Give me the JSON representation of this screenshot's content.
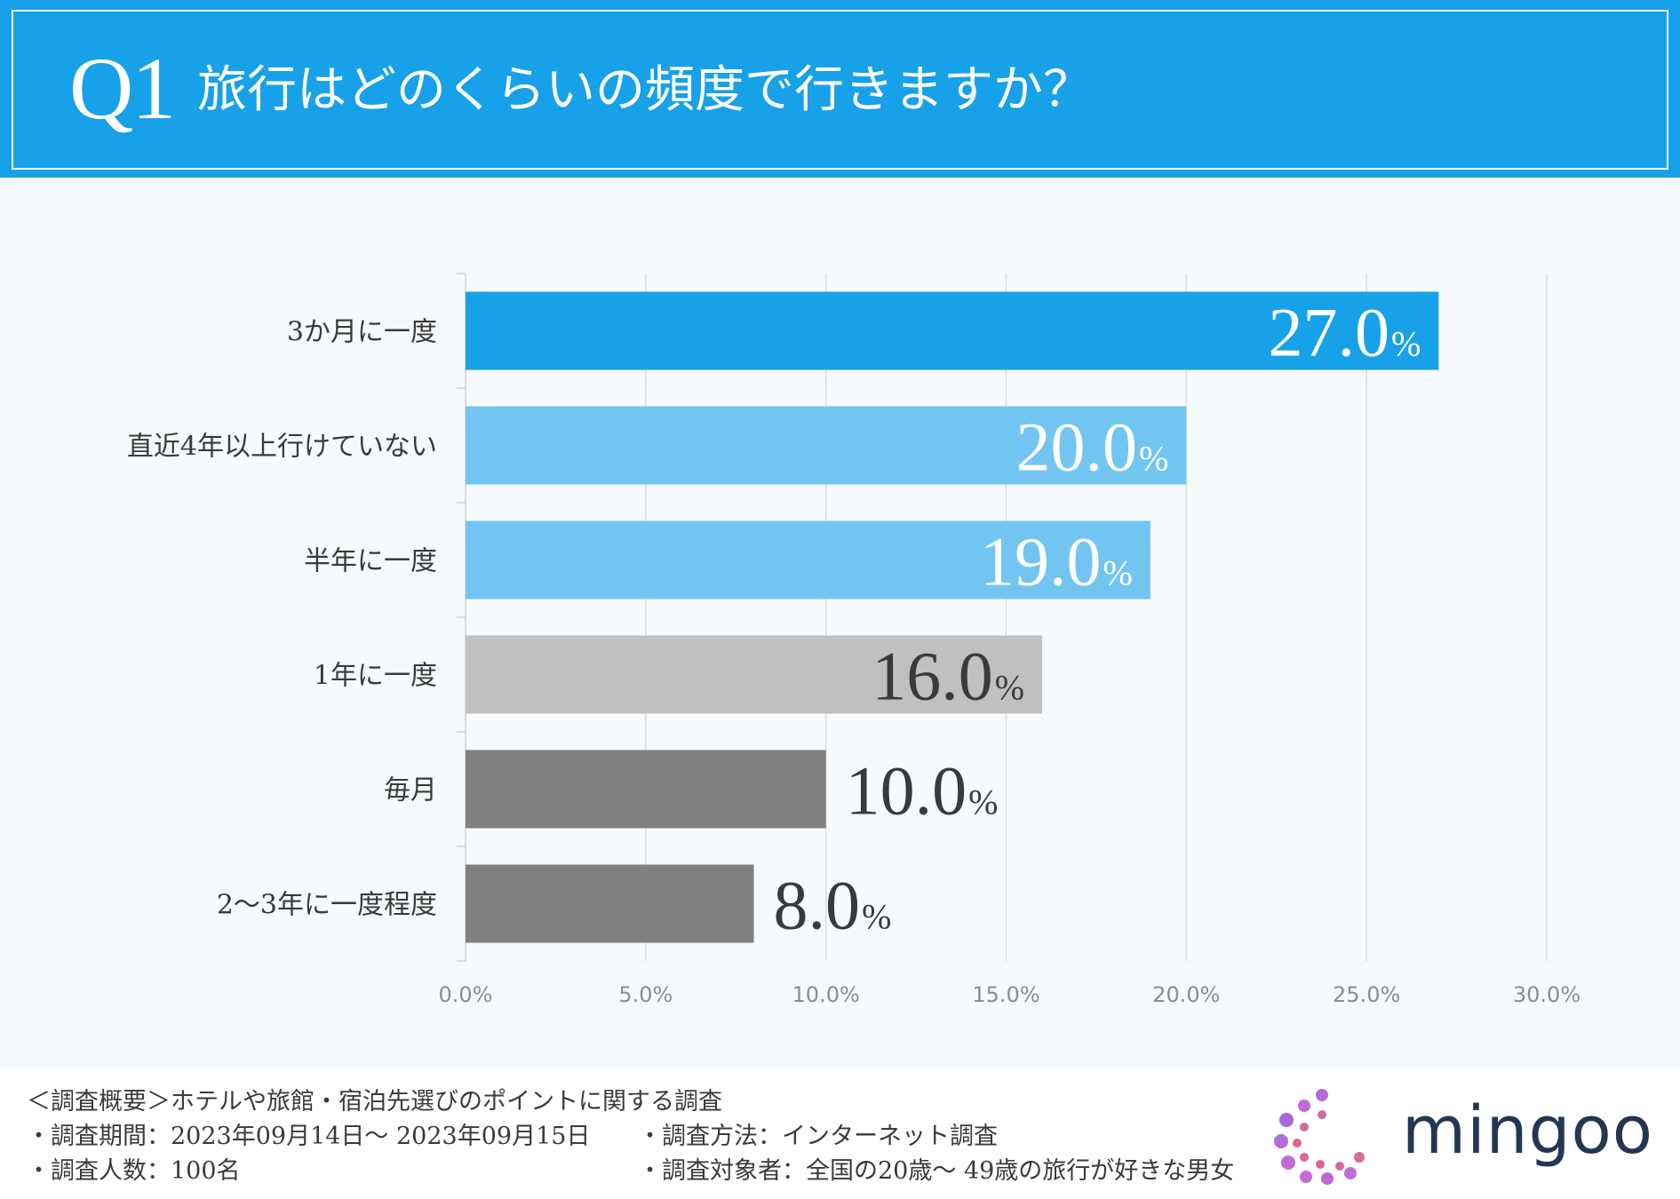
{
  "header": {
    "q_label": "Q1",
    "question": "旅行はどのくらいの頻度で行きますか？"
  },
  "colors": {
    "header_bg": "#17a1e8",
    "dark_blue": "#17a1e8",
    "light_blue": "#72c5f0",
    "light_gray": "#c0c0c0",
    "dark_gray": "#7f7f7f"
  },
  "chart_data": {
    "type": "bar",
    "orientation": "horizontal",
    "categories": [
      "3か月に一度",
      "直近4年以上行けていない",
      "半年に一度",
      "1年に一度",
      "毎月",
      "2〜3年に一度程度"
    ],
    "values": [
      27.0,
      20.0,
      19.0,
      16.0,
      10.0,
      8.0
    ],
    "value_labels": [
      "27.0",
      "20.0",
      "19.0",
      "16.0",
      "10.0",
      "8.0"
    ],
    "value_unit": "%",
    "bar_colors": [
      "#17a1e8",
      "#72c5f0",
      "#72c5f0",
      "#c0c0c0",
      "#7f7f7f",
      "#7f7f7f"
    ],
    "label_inside": [
      true,
      true,
      true,
      true,
      false,
      false
    ],
    "xlim": [
      0,
      30
    ],
    "xticks": [
      0,
      5,
      10,
      15,
      20,
      25,
      30
    ],
    "xtick_labels": [
      "0.0%",
      "5.0%",
      "10.0%",
      "15.0%",
      "20.0%",
      "25.0%",
      "30.0%"
    ],
    "grid": true
  },
  "footer": {
    "summary": "＜調査概要＞ホテルや旅館・宿泊先選びのポイントに関する調査",
    "period": "・調査期間：2023年09月14日〜 2023年09月15日",
    "respondents": "・調査人数：100名",
    "method": "・調査方法：インターネット調査",
    "target": "・調査対象者：全国の20歳〜 49歳の旅行が好きな男女",
    "logo_text": "mingoo"
  }
}
